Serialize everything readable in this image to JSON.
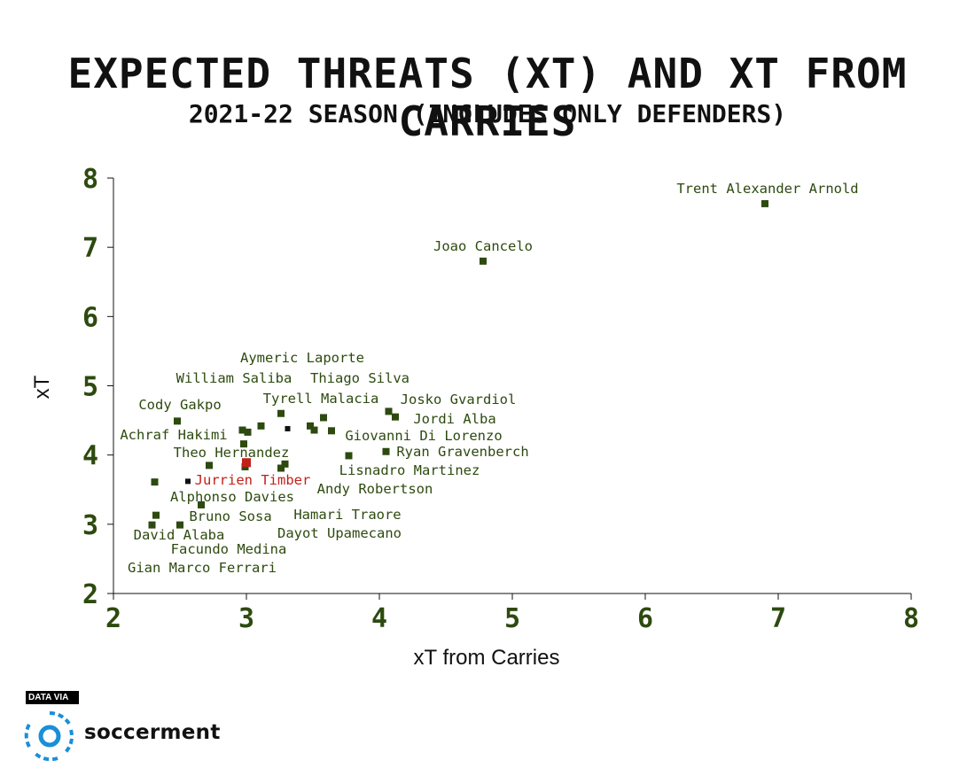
{
  "title": "EXPECTED THREATS (XT) AND XT FROM CARRIES",
  "subtitle": "2021-22 SEASON (INCLUDES ONLY DEFENDERS)",
  "colors": {
    "point": "#2d4a0f",
    "highlight": "#c0211a",
    "marker_dark": "#111111",
    "text": "#2d4a0f"
  },
  "chart_data": {
    "type": "scatter",
    "xlabel": "xT from Carries",
    "ylabel": "xT",
    "xlim": [
      2,
      8
    ],
    "ylim": [
      2,
      8
    ],
    "xticks": [
      "2",
      "3",
      "4",
      "5",
      "6",
      "7",
      "8"
    ],
    "yticks": [
      "2",
      "3",
      "4",
      "5",
      "6",
      "7",
      "8"
    ],
    "points": [
      {
        "name": "Trent Alexander Arnold",
        "x": 6.9,
        "y": 7.63
      },
      {
        "name": "Joao Cancelo",
        "x": 4.78,
        "y": 6.8
      },
      {
        "name": "Aymeric Laporte",
        "x": 3.26,
        "y": 4.6
      },
      {
        "name": "William Saliba",
        "x": 2.97,
        "y": 4.36
      },
      {
        "name": "Thiago Silva",
        "x": 3.58,
        "y": 4.54
      },
      {
        "name": "Cody Gakpo",
        "x": 2.48,
        "y": 4.49
      },
      {
        "name": "Tyrell Malacia",
        "x": 3.11,
        "y": 4.42
      },
      {
        "name": "Josko Gvardiol",
        "x": 4.07,
        "y": 4.63
      },
      {
        "name": "Jordi Alba",
        "x": 4.12,
        "y": 4.55
      },
      {
        "name": "Achraf Hakimi",
        "x": 3.01,
        "y": 4.33
      },
      {
        "name": "Giovanni Di Lorenzo",
        "x": 3.64,
        "y": 4.35
      },
      {
        "name": "Theo Hernandez",
        "x": 2.98,
        "y": 4.16
      },
      {
        "name": "Ryan Gravenberch",
        "x": 4.05,
        "y": 4.05
      },
      {
        "name": "Lisnadro Martinez",
        "x": 3.77,
        "y": 3.99
      },
      {
        "name": "Jurrien Timber",
        "x": 3.0,
        "y": 3.89,
        "highlight": true
      },
      {
        "name": "Andy Robertson",
        "x": 3.29,
        "y": 3.87
      },
      {
        "name": "Alphonso Davies",
        "x": 2.31,
        "y": 3.61
      },
      {
        "name": "Bruno Sosa",
        "x": 2.66,
        "y": 3.28
      },
      {
        "name": "Hamari Traore",
        "x": 3.26,
        "y": 3.81
      },
      {
        "name": "Dayot Upamecano",
        "x": 2.72,
        "y": 3.85
      },
      {
        "name": "David Alaba",
        "x": 2.32,
        "y": 3.13
      },
      {
        "name": "Facundo Medina",
        "x": 2.5,
        "y": 2.99
      },
      {
        "name": "Gian Marco Ferrari",
        "x": 2.29,
        "y": 2.99
      }
    ],
    "extra_markers": [
      {
        "x": 3.31,
        "y": 4.38,
        "style": "dark"
      },
      {
        "x": 3.48,
        "y": 4.42
      },
      {
        "x": 3.51,
        "y": 4.36
      },
      {
        "x": 2.99,
        "y": 3.83
      },
      {
        "x": 2.56,
        "y": 3.62,
        "style": "dark"
      }
    ]
  },
  "branding": {
    "data_via": "DATA VIA",
    "name": "soccerment",
    "icon": "soccerment-logo-icon"
  }
}
